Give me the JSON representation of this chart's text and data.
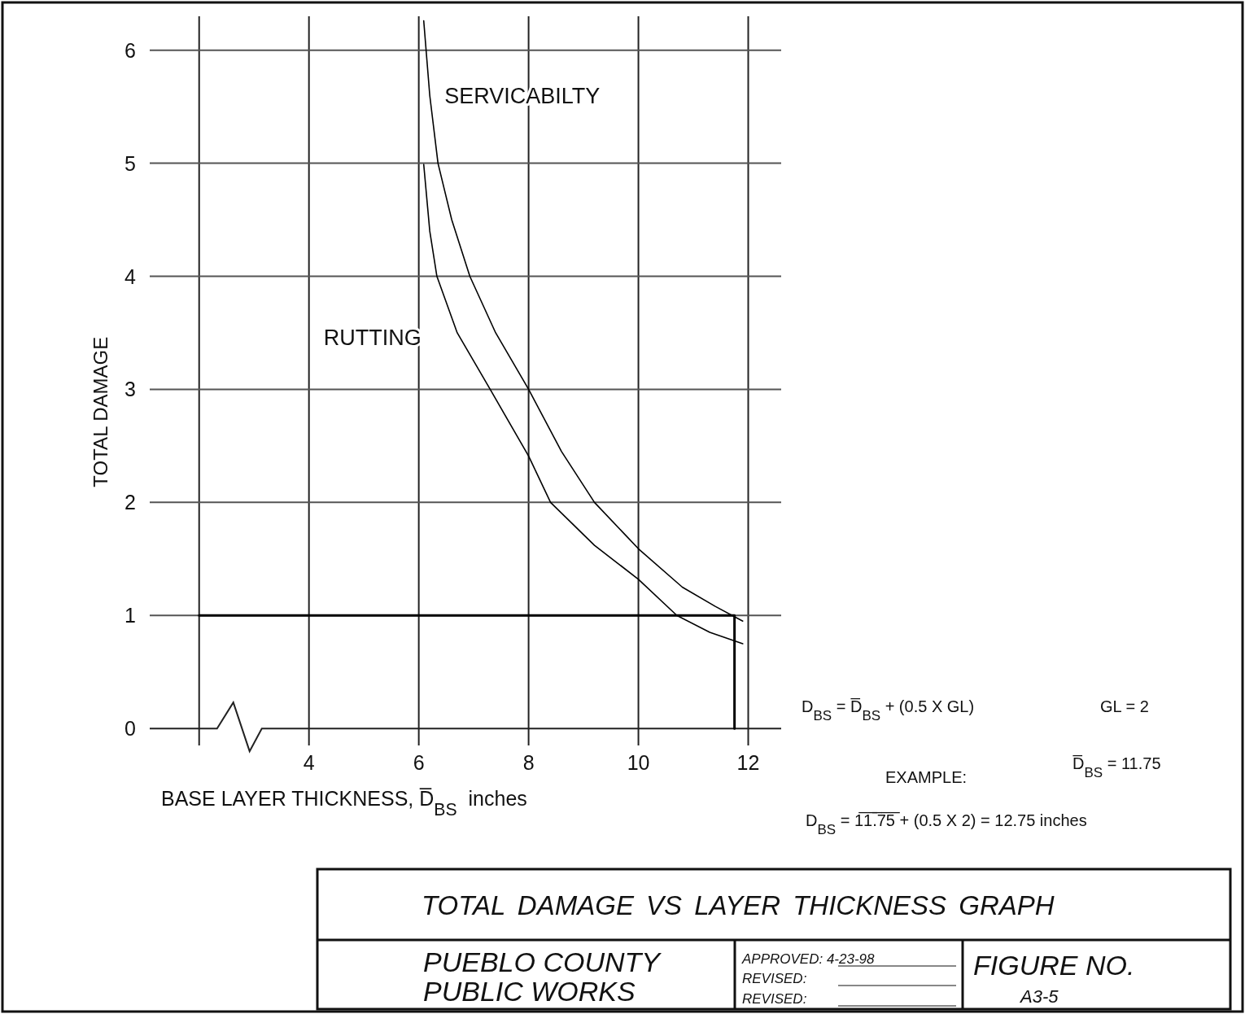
{
  "chart_data": {
    "type": "line",
    "title": "TOTAL DAMAGE VS LAYER THICKNESS GRAPH",
    "xlabel": "BASE LAYER THICKNESS, D̅$_{BS}$  inches",
    "ylabel": "TOTAL DAMAGE",
    "xlim": [
      1.1,
      12.6
    ],
    "ylim": [
      -0.15,
      6.3
    ],
    "xticks": [
      {
        "value": 2,
        "label": null
      },
      4,
      6,
      8,
      10,
      12
    ],
    "yticks": [
      0,
      1,
      2,
      3,
      4,
      5,
      6
    ],
    "grid": true,
    "series": [
      {
        "name": "SERVICABILTY",
        "color": "#000000",
        "x": [
          6.09,
          6.2,
          6.35,
          6.6,
          6.93,
          7.4,
          8.0,
          8.6,
          9.2,
          10.0,
          10.8,
          11.4,
          11.9
        ],
        "values": [
          6.26,
          5.6,
          5.0,
          4.5,
          4.0,
          3.5,
          3.0,
          2.45,
          2.0,
          1.59,
          1.25,
          1.08,
          0.95
        ]
      },
      {
        "name": "RUTTING",
        "color": "#000000",
        "x": [
          6.09,
          6.2,
          6.33,
          6.7,
          7.3,
          8.0,
          8.4,
          9.2,
          10.0,
          10.7,
          11.3,
          11.9
        ],
        "values": [
          4.99,
          4.4,
          4.0,
          3.5,
          3.0,
          2.41,
          2.0,
          1.62,
          1.32,
          1.0,
          0.85,
          0.75
        ]
      },
      {
        "color": "#000000",
        "x": [
          2,
          11.75,
          11.75
        ],
        "values": [
          1,
          1,
          0
        ]
      }
    ],
    "annotations": [
      "D$_{BS}$ = D̅$_{BS}$ + (0.5 X GL)",
      "GL = 2",
      "D̅$_{BS}$ = 11.75",
      "EXAMPLE:",
      "D$_{BS}$ = 1̅1̅.̅7̅5̅ + (0.5 X 2) = 12.75 inches",
      "PUEBLO COUNTY",
      "PUBLIC WORKS",
      "APPROVED: 4-23-98",
      "REVISED:",
      "REVISED:",
      "FIGURE NO.",
      "A3-5"
    ]
  }
}
